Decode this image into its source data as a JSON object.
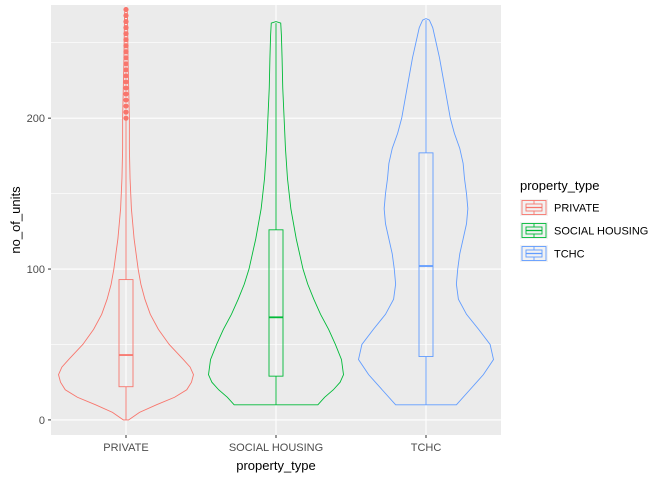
{
  "chart_data": {
    "type": "violin",
    "xlabel": "property_type",
    "ylabel": "no_of_units",
    "ylim": [
      -10,
      275
    ],
    "yticks": [
      0,
      100,
      200
    ],
    "categories": [
      "PRIVATE",
      "SOCIAL HOUSING",
      "TCHC"
    ],
    "colors": {
      "PRIVATE": "#F8766D",
      "SOCIAL HOUSING": "#00BA38",
      "TCHC": "#619CFF"
    },
    "legend": {
      "title": "property_type",
      "position": "right",
      "items": [
        "PRIVATE",
        "SOCIAL HOUSING",
        "TCHC"
      ]
    },
    "grid": true,
    "series": [
      {
        "name": "PRIVATE",
        "box": {
          "min": 0,
          "q1": 22,
          "median": 43,
          "q3": 93,
          "max": 199
        },
        "outliers": [
          200,
          204,
          208,
          212,
          216,
          220,
          224,
          228,
          232,
          236,
          240,
          244,
          248,
          252,
          256,
          260,
          264,
          268,
          272
        ],
        "violin": [
          [
            0,
            0.04
          ],
          [
            5,
            0.2
          ],
          [
            10,
            0.45
          ],
          [
            15,
            0.72
          ],
          [
            20,
            0.9
          ],
          [
            25,
            0.97
          ],
          [
            30,
            1.0
          ],
          [
            35,
            0.95
          ],
          [
            40,
            0.85
          ],
          [
            50,
            0.64
          ],
          [
            60,
            0.48
          ],
          [
            70,
            0.36
          ],
          [
            80,
            0.28
          ],
          [
            90,
            0.22
          ],
          [
            100,
            0.18
          ],
          [
            120,
            0.12
          ],
          [
            140,
            0.08
          ],
          [
            160,
            0.06
          ],
          [
            180,
            0.05
          ],
          [
            200,
            0.05
          ],
          [
            220,
            0.04
          ],
          [
            240,
            0.03
          ],
          [
            260,
            0.025
          ],
          [
            270,
            0.02
          ],
          [
            273,
            0.0
          ]
        ]
      },
      {
        "name": "SOCIAL HOUSING",
        "box": {
          "min": 10,
          "q1": 29,
          "median": 68,
          "q3": 126,
          "max": 263
        },
        "outliers": [],
        "violin": [
          [
            10,
            0.62
          ],
          [
            15,
            0.72
          ],
          [
            20,
            0.85
          ],
          [
            25,
            0.95
          ],
          [
            30,
            1.0
          ],
          [
            40,
            0.97
          ],
          [
            50,
            0.88
          ],
          [
            60,
            0.78
          ],
          [
            70,
            0.66
          ],
          [
            80,
            0.56
          ],
          [
            90,
            0.47
          ],
          [
            100,
            0.4
          ],
          [
            120,
            0.3
          ],
          [
            140,
            0.22
          ],
          [
            160,
            0.17
          ],
          [
            180,
            0.14
          ],
          [
            200,
            0.12
          ],
          [
            220,
            0.1
          ],
          [
            240,
            0.09
          ],
          [
            255,
            0.08
          ],
          [
            263,
            0.07
          ],
          [
            264,
            0.0
          ]
        ]
      },
      {
        "name": "TCHC",
        "box": {
          "min": 10,
          "q1": 42,
          "median": 102,
          "q3": 177,
          "max": 265
        },
        "outliers": [],
        "violin": [
          [
            10,
            0.45
          ],
          [
            20,
            0.65
          ],
          [
            30,
            0.85
          ],
          [
            40,
            1.0
          ],
          [
            50,
            0.95
          ],
          [
            60,
            0.78
          ],
          [
            70,
            0.6
          ],
          [
            80,
            0.48
          ],
          [
            90,
            0.45
          ],
          [
            100,
            0.47
          ],
          [
            110,
            0.5
          ],
          [
            120,
            0.55
          ],
          [
            130,
            0.6
          ],
          [
            140,
            0.62
          ],
          [
            150,
            0.6
          ],
          [
            160,
            0.57
          ],
          [
            170,
            0.55
          ],
          [
            180,
            0.5
          ],
          [
            190,
            0.42
          ],
          [
            200,
            0.36
          ],
          [
            210,
            0.32
          ],
          [
            220,
            0.28
          ],
          [
            230,
            0.24
          ],
          [
            240,
            0.2
          ],
          [
            250,
            0.15
          ],
          [
            260,
            0.1
          ],
          [
            265,
            0.05
          ],
          [
            266,
            0.0
          ]
        ]
      }
    ]
  }
}
